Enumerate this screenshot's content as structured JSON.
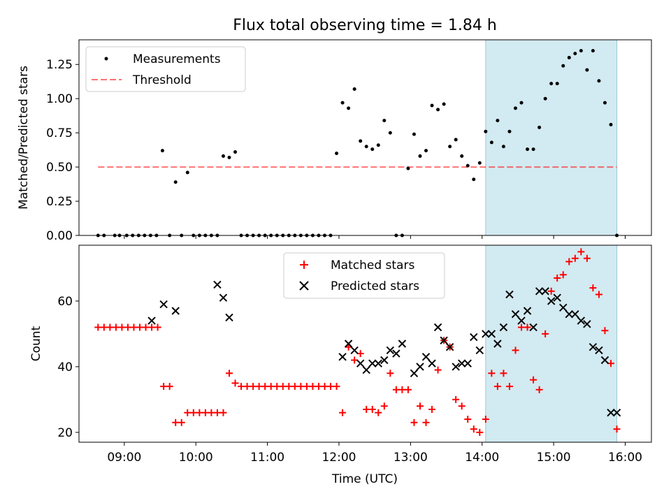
{
  "chart_data": [
    {
      "type": "scatter",
      "title": "Flux total observing time = 1.84 h",
      "ylabel": "Matched/Predicted stars",
      "xlabel": "",
      "ylim": [
        0,
        1.43
      ],
      "xlim": [
        "08:22",
        "16:22"
      ],
      "yticks": [
        "0.00",
        "0.25",
        "0.50",
        "0.75",
        "1.00",
        "1.25"
      ],
      "highlight": {
        "x0": "14:03",
        "x1": "15:53",
        "color": "#add8e6"
      },
      "legend": {
        "placement": "top-left",
        "entries": [
          "Measurements",
          "Threshold"
        ]
      },
      "threshold": {
        "name": "Threshold",
        "y": 0.5,
        "x0": "08:38",
        "x1": "15:53",
        "color": "#ff0000"
      },
      "series": [
        {
          "name": "Measurements",
          "marker": "dot",
          "color": "#000000",
          "x": [
            "08:38",
            "08:43",
            "08:52",
            "08:56",
            "09:02",
            "09:07",
            "09:12",
            "09:17",
            "09:22",
            "09:27",
            "09:32",
            "09:38",
            "09:43",
            "09:48",
            "09:53",
            "09:58",
            "10:03",
            "10:08",
            "10:13",
            "10:18",
            "10:23",
            "10:28",
            "10:33",
            "10:38",
            "10:43",
            "10:48",
            "10:53",
            "10:58",
            "11:03",
            "11:08",
            "11:13",
            "11:18",
            "11:23",
            "11:28",
            "11:33",
            "11:38",
            "11:43",
            "11:48",
            "11:53",
            "11:58",
            "12:03",
            "12:08",
            "12:13",
            "12:18",
            "12:23",
            "12:28",
            "12:33",
            "12:38",
            "12:43",
            "12:48",
            "12:53",
            "12:58",
            "13:03",
            "13:08",
            "13:13",
            "13:18",
            "13:23",
            "13:28",
            "13:33",
            "13:38",
            "13:43",
            "13:48",
            "13:53",
            "13:58",
            "14:03",
            "14:08",
            "14:13",
            "14:18",
            "14:23",
            "14:28",
            "14:33",
            "14:38",
            "14:43",
            "14:48",
            "14:53",
            "14:58",
            "15:03",
            "15:08",
            "15:13",
            "15:18",
            "15:23",
            "15:28",
            "15:33",
            "15:38",
            "15:43",
            "15:48",
            "15:53"
          ],
          "y": [
            0,
            0,
            0,
            0,
            0,
            0,
            0,
            0,
            0,
            0,
            0.62,
            0,
            0.39,
            0,
            0.46,
            0,
            0,
            0,
            0,
            0,
            0.58,
            0.57,
            0.61,
            0,
            0,
            0,
            0,
            0,
            0,
            0,
            0,
            0,
            0,
            0,
            0,
            0,
            0,
            0,
            0,
            0.6,
            0.97,
            0.93,
            1.07,
            0.69,
            0.65,
            0.63,
            0.66,
            0.84,
            0.75,
            0,
            0,
            0.49,
            0.74,
            0.58,
            0.62,
            0.95,
            0.92,
            0.96,
            0.65,
            0.7,
            0.58,
            0.51,
            0.41,
            0.53,
            0.76,
            0.68,
            0.84,
            0.65,
            0.76,
            0.93,
            0.97,
            0.63,
            0.63,
            0.79,
            1.0,
            1.11,
            1.11,
            1.24,
            1.3,
            1.33,
            1.35,
            1.21,
            1.35,
            1.13,
            0.97,
            0.81,
            0
          ]
        }
      ]
    },
    {
      "type": "scatter",
      "title": "",
      "ylabel": "Count",
      "xlabel": "Time (UTC)",
      "ylim": [
        17,
        77
      ],
      "xlim": [
        "08:22",
        "16:22"
      ],
      "yticks": [
        "20",
        "40",
        "60"
      ],
      "xticks": [
        "09:00",
        "10:00",
        "11:00",
        "12:00",
        "13:00",
        "14:00",
        "15:00",
        "16:00"
      ],
      "highlight": {
        "x0": "14:03",
        "x1": "15:53",
        "color": "#add8e6"
      },
      "legend": {
        "placement": "top-center",
        "entries": [
          "Matched stars",
          "Predicted stars"
        ]
      },
      "series": [
        {
          "name": "Matched stars",
          "marker": "plus",
          "color": "#ff0000",
          "x": [
            "08:38",
            "08:43",
            "08:48",
            "08:53",
            "08:58",
            "09:03",
            "09:08",
            "09:13",
            "09:18",
            "09:23",
            "09:28",
            "09:33",
            "09:38",
            "09:43",
            "09:48",
            "09:53",
            "09:58",
            "10:03",
            "10:08",
            "10:13",
            "10:18",
            "10:23",
            "10:28",
            "10:33",
            "10:38",
            "10:43",
            "10:48",
            "10:53",
            "10:58",
            "11:03",
            "11:08",
            "11:13",
            "11:18",
            "11:23",
            "11:28",
            "11:33",
            "11:38",
            "11:43",
            "11:48",
            "11:53",
            "11:58",
            "12:03",
            "12:08",
            "12:13",
            "12:18",
            "12:23",
            "12:28",
            "12:33",
            "12:38",
            "12:43",
            "12:48",
            "12:53",
            "12:58",
            "13:03",
            "13:08",
            "13:13",
            "13:18",
            "13:23",
            "13:28",
            "13:33",
            "13:38",
            "13:43",
            "13:48",
            "13:53",
            "13:58",
            "14:03",
            "14:08",
            "14:13",
            "14:18",
            "14:23",
            "14:28",
            "14:33",
            "14:38",
            "14:43",
            "14:48",
            "14:53",
            "14:58",
            "15:03",
            "15:08",
            "15:13",
            "15:18",
            "15:23",
            "15:28",
            "15:33",
            "15:38",
            "15:43",
            "15:48",
            "15:53"
          ],
          "y": [
            52,
            52,
            52,
            52,
            52,
            52,
            52,
            52,
            52,
            52,
            52,
            34,
            34,
            23,
            23,
            26,
            26,
            26,
            26,
            26,
            26,
            26,
            38,
            35,
            34,
            34,
            34,
            34,
            34,
            34,
            34,
            34,
            34,
            34,
            34,
            34,
            34,
            34,
            34,
            34,
            34,
            26,
            46,
            42,
            44,
            27,
            27,
            26,
            28,
            38,
            33,
            33,
            33,
            23,
            28,
            23,
            27,
            39,
            48,
            46,
            30,
            28,
            24,
            21,
            20,
            24,
            38,
            34,
            38,
            34,
            45,
            52,
            52,
            36,
            33,
            50,
            63,
            67,
            68,
            72,
            73,
            75,
            73,
            64,
            62,
            51,
            41,
            21
          ]
        },
        {
          "name": "Predicted stars",
          "marker": "x",
          "color": "#000000",
          "x": [
            "09:23",
            "09:33",
            "09:43",
            "10:18",
            "10:23",
            "10:28",
            "12:03",
            "12:08",
            "12:13",
            "12:18",
            "12:23",
            "12:28",
            "12:33",
            "12:38",
            "12:43",
            "12:48",
            "12:53",
            "13:03",
            "13:08",
            "13:13",
            "13:18",
            "13:23",
            "13:28",
            "13:33",
            "13:38",
            "13:43",
            "13:48",
            "13:53",
            "13:58",
            "14:03",
            "14:08",
            "14:13",
            "14:18",
            "14:23",
            "14:28",
            "14:33",
            "14:38",
            "14:43",
            "14:48",
            "14:53",
            "14:58",
            "15:03",
            "15:08",
            "15:13",
            "15:18",
            "15:23",
            "15:28",
            "15:33",
            "15:38",
            "15:43",
            "15:48",
            "15:53"
          ],
          "y": [
            54,
            59,
            57,
            65,
            61,
            55,
            43,
            47,
            45,
            41,
            39,
            41,
            41,
            42,
            45,
            44,
            47,
            38,
            40,
            43,
            41,
            52,
            48,
            46,
            40,
            41,
            41,
            49,
            45,
            50,
            50,
            47,
            52,
            62,
            56,
            54,
            57,
            52,
            63,
            63,
            60,
            61,
            58,
            56,
            56,
            54,
            53,
            46,
            45,
            42,
            26,
            26
          ]
        }
      ]
    }
  ]
}
